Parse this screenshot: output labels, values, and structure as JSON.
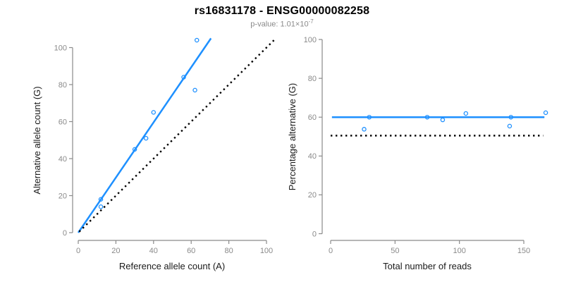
{
  "header": {
    "title": "rs16831178 - ENSG00000082258",
    "subtitle_prefix": "p-value: 1.01×10",
    "subtitle_exponent": "-7"
  },
  "colors": {
    "accent_blue": "#1e90ff",
    "dotted_black": "#000000",
    "axis_gray": "#8a8a8a",
    "tick_label_gray": "#8a8a8a",
    "axis_title_black": "#1a1a1a",
    "subtitle_gray": "#8a8a8a",
    "background": "#ffffff"
  },
  "chart_data": [
    {
      "id": "allele-counts",
      "type": "scatter",
      "xlabel": "Reference allele count (A)",
      "ylabel": "Alternative allele count (G)",
      "xlim": [
        0,
        100
      ],
      "ylim": [
        0,
        100
      ],
      "xticks": [
        0,
        20,
        40,
        60,
        80,
        100
      ],
      "yticks": [
        0,
        20,
        40,
        60,
        80,
        100
      ],
      "grid": false,
      "legend": null,
      "points": [
        [
          12,
          14
        ],
        [
          12,
          18
        ],
        [
          30,
          45
        ],
        [
          36,
          51
        ],
        [
          40,
          65
        ],
        [
          56,
          84
        ],
        [
          62,
          77
        ],
        [
          63,
          104
        ]
      ],
      "lines": [
        {
          "name": "regression-line",
          "style": "solid",
          "color": "#1e90ff",
          "from": [
            0,
            0
          ],
          "to": [
            70.5,
            105
          ]
        },
        {
          "name": "identity-line",
          "style": "dotted",
          "color": "#000000",
          "from": [
            0.5,
            0.5
          ],
          "to": [
            104,
            104
          ]
        }
      ]
    },
    {
      "id": "percentage-vs-reads",
      "type": "scatter",
      "xlabel": "Total number of reads",
      "ylabel": "Percentage alternative (G)",
      "xlim": [
        0,
        150
      ],
      "ylim": [
        0,
        100
      ],
      "xticks": [
        0,
        50,
        100,
        150
      ],
      "yticks": [
        0,
        20,
        40,
        60,
        80,
        100
      ],
      "grid": false,
      "legend": null,
      "points": [
        [
          26,
          53.8
        ],
        [
          30,
          60
        ],
        [
          75,
          60
        ],
        [
          87,
          58.6
        ],
        [
          105,
          61.9
        ],
        [
          139,
          55.4
        ],
        [
          140,
          60
        ],
        [
          167,
          62.3
        ]
      ],
      "lines": [
        {
          "name": "regression-line",
          "style": "solid",
          "color": "#1e90ff",
          "from": [
            1,
            60
          ],
          "to": [
            166,
            60
          ]
        },
        {
          "name": "null-line",
          "style": "dotted",
          "color": "#000000",
          "from": [
            0,
            50.5
          ],
          "to": [
            165,
            50.5
          ]
        }
      ]
    }
  ]
}
